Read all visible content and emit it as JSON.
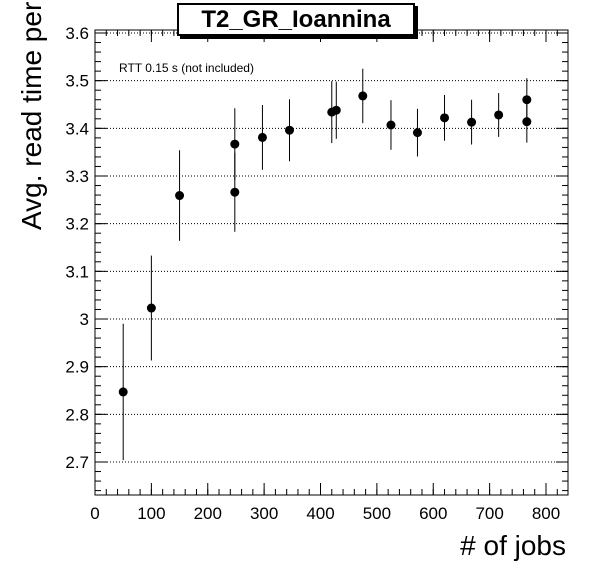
{
  "chart_data": {
    "type": "scatter",
    "title": "T2_GR_Ioannina",
    "annotation": "RTT 0.15 s (not included)",
    "xlabel": "# of jobs",
    "ylabel": "Avg. read time per block [s]",
    "xlim": [
      0,
      840
    ],
    "ylim": [
      2.62,
      3.61
    ],
    "xticks": [
      "0",
      "100",
      "200",
      "300",
      "400",
      "500",
      "600",
      "700",
      "800"
    ],
    "yticks": [
      "2.7",
      "2.8",
      "2.9",
      "3",
      "3.1",
      "3.2",
      "3.3",
      "3.4",
      "3.5",
      "3.6"
    ],
    "grid": "horizontal dotted",
    "points": [
      {
        "x": 50,
        "y": 2.847,
        "err": 0.143
      },
      {
        "x": 100,
        "y": 3.023,
        "err": 0.11
      },
      {
        "x": 150,
        "y": 3.259,
        "err": 0.095
      },
      {
        "x": 248,
        "y": 3.367,
        "err": 0.075
      },
      {
        "x": 248,
        "y": 3.266,
        "err": 0.083
      },
      {
        "x": 297,
        "y": 3.381,
        "err": 0.068
      },
      {
        "x": 345,
        "y": 3.396,
        "err": 0.065
      },
      {
        "x": 420,
        "y": 3.434,
        "err": 0.065
      },
      {
        "x": 428,
        "y": 3.438,
        "err": 0.06
      },
      {
        "x": 475,
        "y": 3.468,
        "err": 0.057
      },
      {
        "x": 525,
        "y": 3.407,
        "err": 0.052
      },
      {
        "x": 572,
        "y": 3.391,
        "err": 0.05
      },
      {
        "x": 620,
        "y": 3.422,
        "err": 0.048
      },
      {
        "x": 668,
        "y": 3.413,
        "err": 0.047
      },
      {
        "x": 716,
        "y": 3.428,
        "err": 0.046
      },
      {
        "x": 766,
        "y": 3.46,
        "err": 0.045
      },
      {
        "x": 766,
        "y": 3.414,
        "err": 0.044
      }
    ]
  }
}
